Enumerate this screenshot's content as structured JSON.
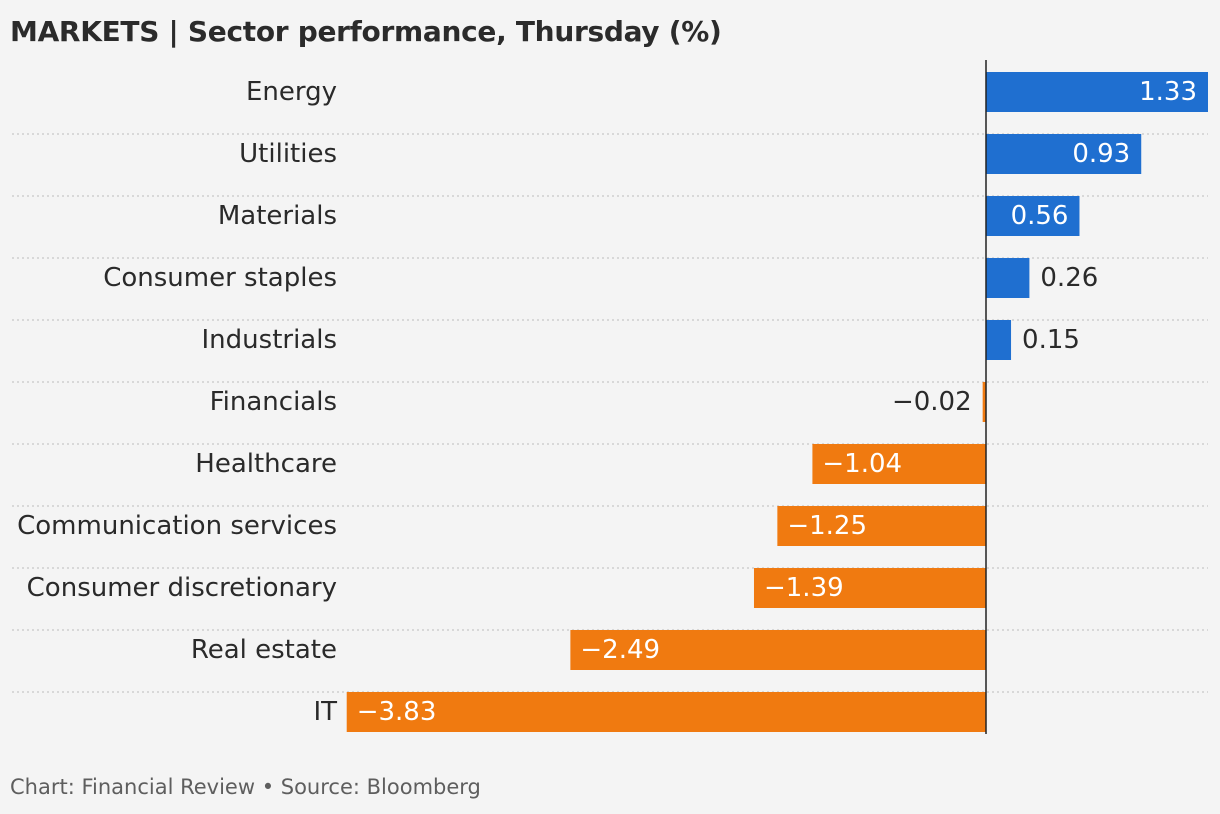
{
  "chart_data": {
    "type": "bar",
    "orientation": "horizontal",
    "title": "MARKETS | Sector performance, Thursday (%)",
    "categories": [
      "Energy",
      "Utilities",
      "Materials",
      "Consumer staples",
      "Industrials",
      "Financials",
      "Healthcare",
      "Communication services",
      "Consumer discretionary",
      "Real estate",
      "IT"
    ],
    "values": [
      1.33,
      0.93,
      0.56,
      0.26,
      0.15,
      -0.02,
      -1.04,
      -1.25,
      -1.39,
      -2.49,
      -3.83
    ],
    "value_labels": [
      "1.33",
      "0.93",
      "0.56",
      "0.26",
      "0.15",
      "−0.02",
      "−1.04",
      "−1.25",
      "−1.39",
      "−2.49",
      "−3.83"
    ],
    "xlim": [
      -3.83,
      1.33
    ],
    "colors": {
      "positive": "#1f6fd0",
      "negative": "#f07a10",
      "gridline": "#c8c8c8",
      "axis": "#222222"
    },
    "grid": true,
    "legend": "none"
  },
  "footer": "Chart: Financial Review • Source: Bloomberg"
}
